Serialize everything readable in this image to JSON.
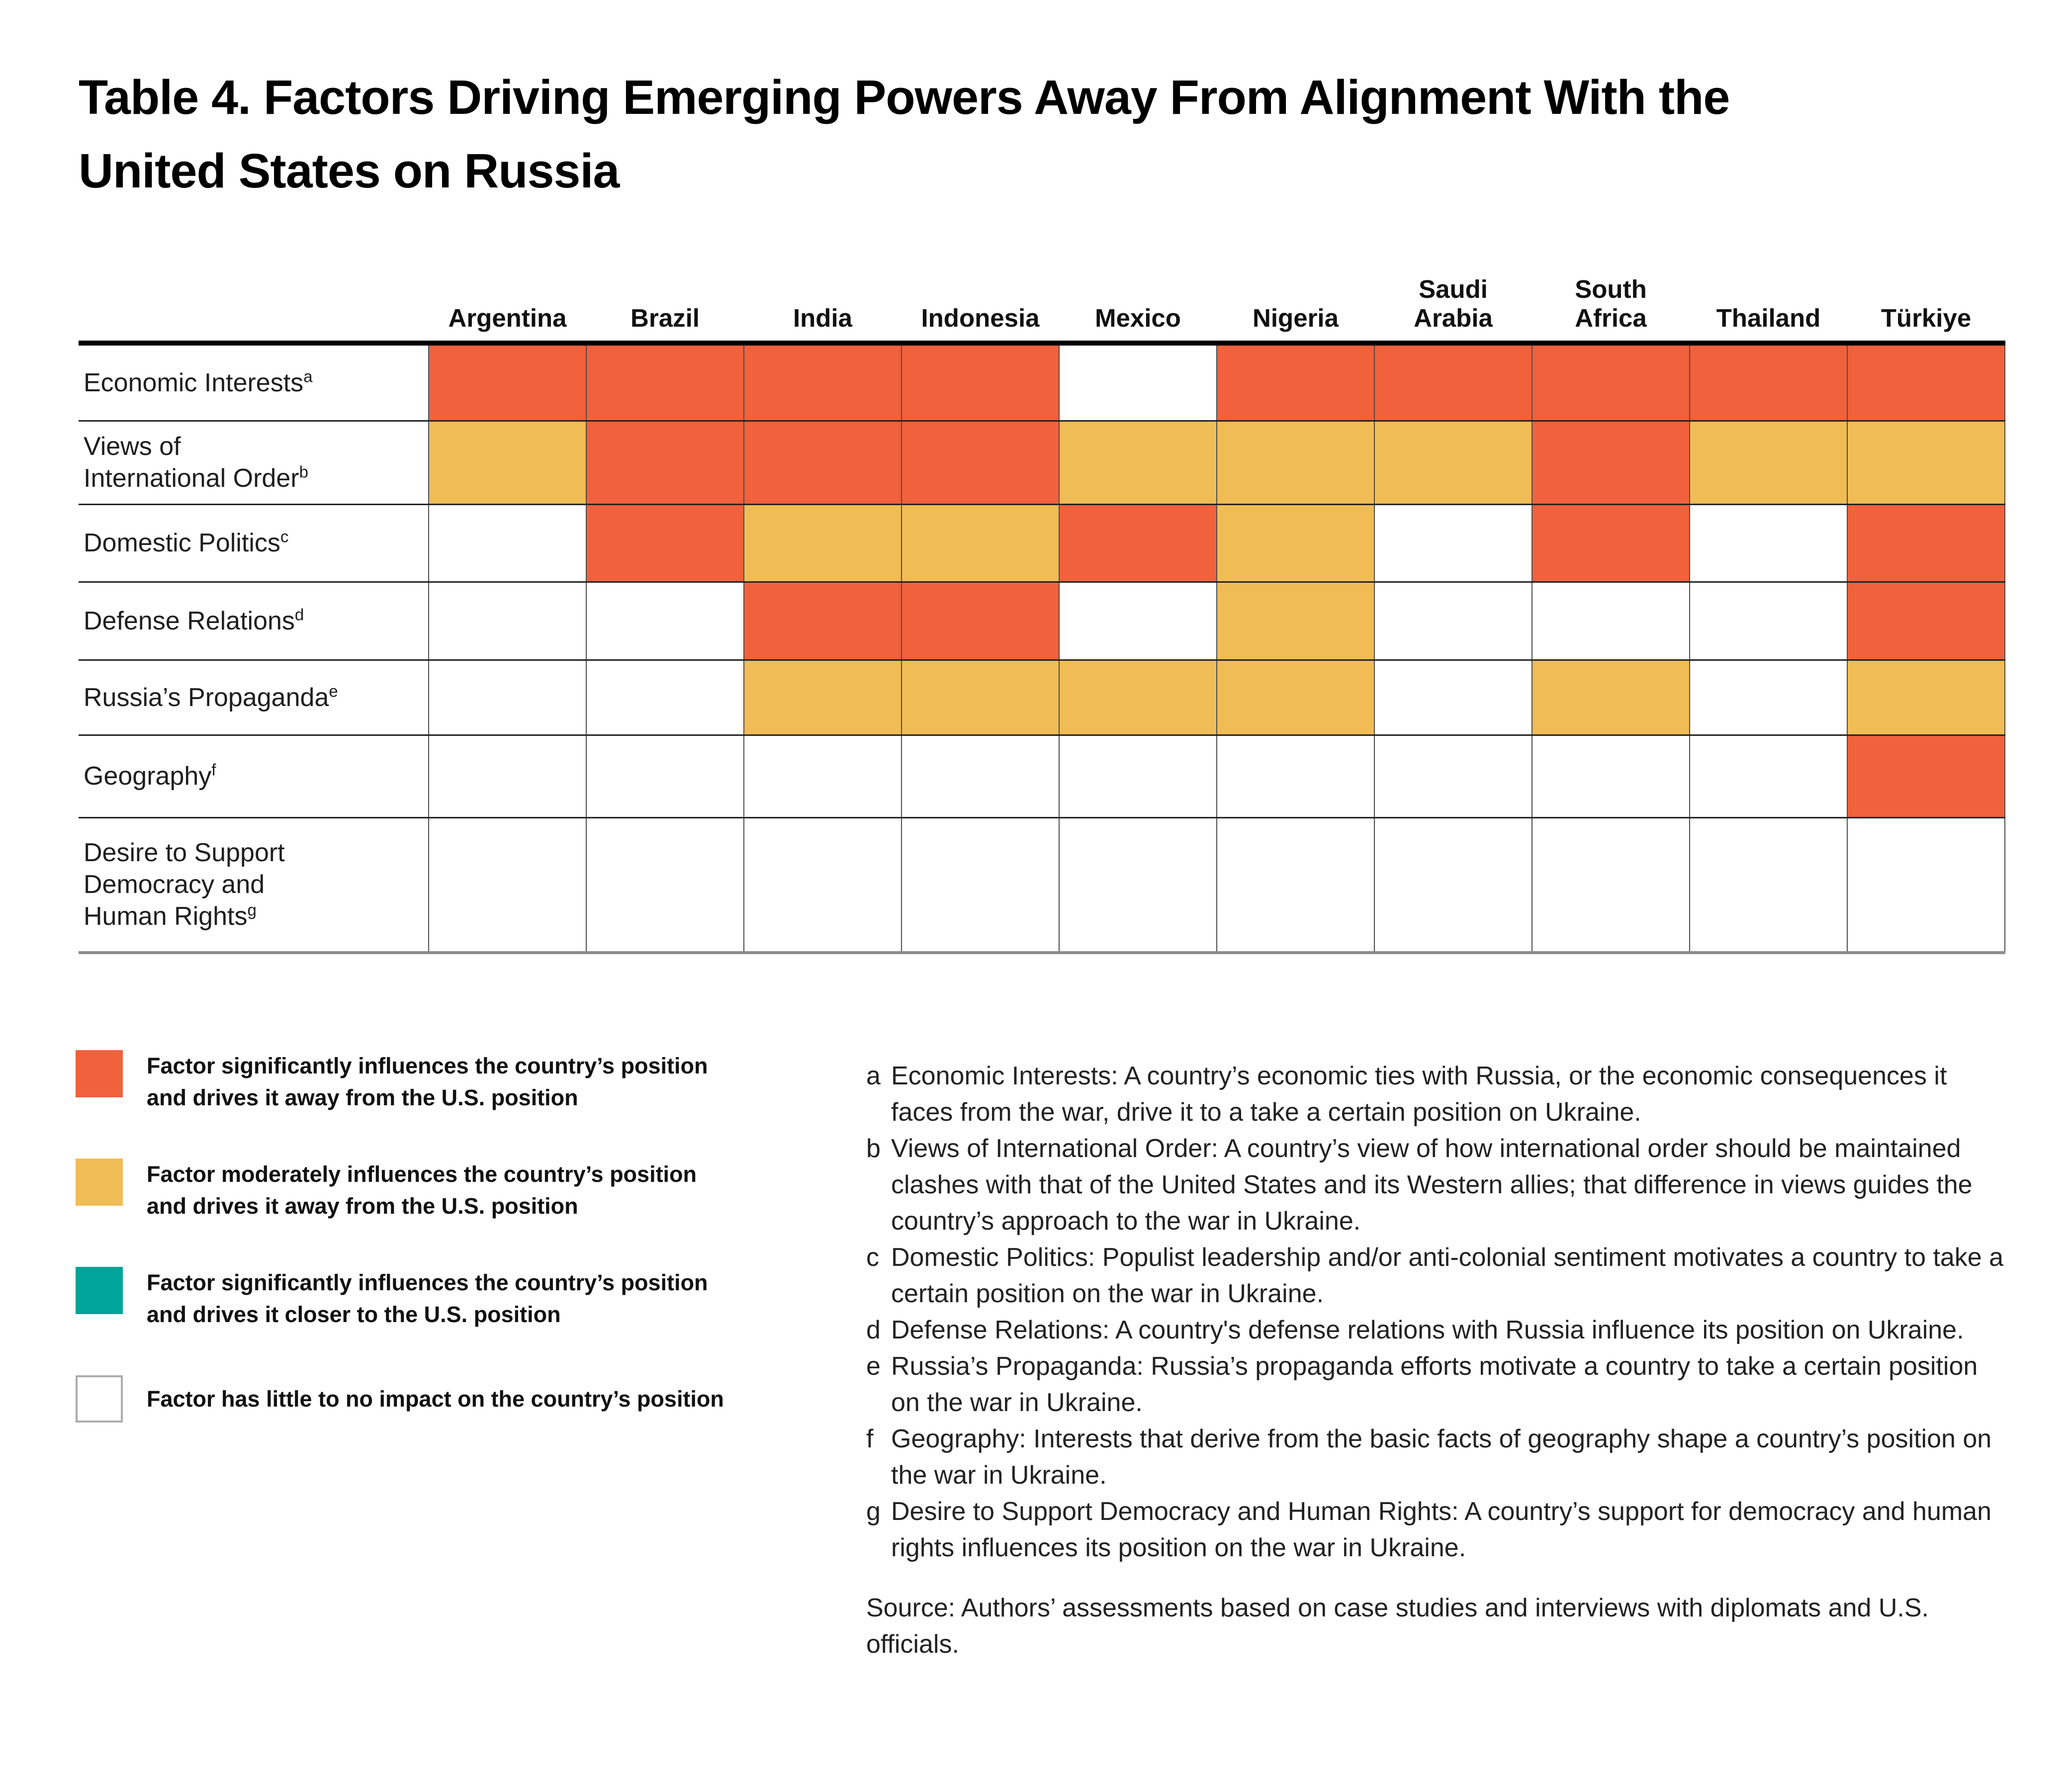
{
  "title": "Table 4. Factors Driving Emerging Powers Away From Alignment With the\nUnited States on Russia",
  "colors": {
    "sig_away": "#F0613C",
    "mod_away": "#F0BC55",
    "sig_toward": "#00A498",
    "none": "#FFFFFF"
  },
  "chart_data": {
    "type": "heatmap",
    "title": "Table 4. Factors Driving Emerging Powers Away From Alignment With the United States on Russia",
    "columns": [
      "Argentina",
      "Brazil",
      "India",
      "Indonesia",
      "Mexico",
      "Nigeria",
      "Saudi\nArabia",
      "South\nAfrica",
      "Thailand",
      "Türkiye"
    ],
    "rows": [
      {
        "label": "Economic Interests",
        "sup": "a"
      },
      {
        "label": "Views of\nInternational Order",
        "sup": "b"
      },
      {
        "label": "Domestic Politics",
        "sup": "c"
      },
      {
        "label": "Defense Relations",
        "sup": "d"
      },
      {
        "label": "Russia’s Propaganda",
        "sup": "e"
      },
      {
        "label": "Geography",
        "sup": "f"
      },
      {
        "label": "Desire to Support\nDemocracy and\nHuman Rights",
        "sup": "g"
      }
    ],
    "values": [
      [
        "sig_away",
        "sig_away",
        "sig_away",
        "sig_away",
        "none",
        "sig_away",
        "sig_away",
        "sig_away",
        "sig_away",
        "sig_away"
      ],
      [
        "mod_away",
        "sig_away",
        "sig_away",
        "sig_away",
        "mod_away",
        "mod_away",
        "mod_away",
        "sig_away",
        "mod_away",
        "mod_away"
      ],
      [
        "none",
        "sig_away",
        "mod_away",
        "mod_away",
        "sig_away",
        "mod_away",
        "none",
        "sig_away",
        "none",
        "sig_away"
      ],
      [
        "none",
        "none",
        "sig_away",
        "sig_away",
        "none",
        "mod_away",
        "none",
        "none",
        "none",
        "sig_away"
      ],
      [
        "none",
        "none",
        "mod_away",
        "mod_away",
        "mod_away",
        "mod_away",
        "none",
        "mod_away",
        "none",
        "mod_away"
      ],
      [
        "none",
        "none",
        "none",
        "none",
        "none",
        "none",
        "none",
        "none",
        "none",
        "sig_away"
      ],
      [
        "none",
        "none",
        "none",
        "none",
        "none",
        "none",
        "none",
        "none",
        "none",
        "none"
      ]
    ],
    "value_meaning": {
      "sig_away": "Factor significantly influences the country’s position and drives it away from the U.S. position",
      "mod_away": "Factor moderately influences the country’s position and drives it away from the U.S. position",
      "sig_toward": "Factor significantly influences the country’s position and drives it closer to the U.S. position",
      "none": "Factor has little to no impact on the country’s position"
    },
    "legend_position": "bottom-left"
  },
  "legend": {
    "items": [
      {
        "color_key": "sig_away",
        "label": "Factor significantly influences the country’s position\nand drives it away from the U.S. position"
      },
      {
        "color_key": "mod_away",
        "label": "Factor moderately influences the country’s position\nand drives it away from the U.S. position"
      },
      {
        "color_key": "sig_toward",
        "label": "Factor significantly influences the country’s position\nand drives it closer to the U.S. position"
      },
      {
        "color_key": "none",
        "label": "Factor has little to no impact on the country’s position"
      }
    ]
  },
  "footnotes": [
    {
      "marker": "a",
      "text": "Economic Interests: A country’s economic ties with Russia, or the economic consequences it faces from the war, drive it to a take a certain position on Ukraine."
    },
    {
      "marker": "b",
      "text": "Views of International Order: A country’s view of how international order should be maintained clashes with that of the United States and its Western allies; that difference in views guides the country’s approach to the war in Ukraine."
    },
    {
      "marker": "c",
      "text": "Domestic Politics: Populist leadership and/or anti-colonial sentiment motivates a country to take a certain position on the war in Ukraine."
    },
    {
      "marker": "d",
      "text": "Defense Relations: A country's defense relations with Russia influence its position on Ukraine."
    },
    {
      "marker": "e",
      "text": "Russia’s Propaganda: Russia’s propaganda efforts motivate a country to take a certain position on the war in Ukraine."
    },
    {
      "marker": "f",
      "text": "Geography: Interests that derive from the basic facts of geography shape a country’s position on the war in Ukraine."
    },
    {
      "marker": "g",
      "text": "Desire to Support Democracy and Human Rights: A country’s support for democracy and human rights influences its position on the war in Ukraine."
    }
  ],
  "source": "Source: Authors’ assessments based on case studies and interviews with diplomats and U.S. officials."
}
